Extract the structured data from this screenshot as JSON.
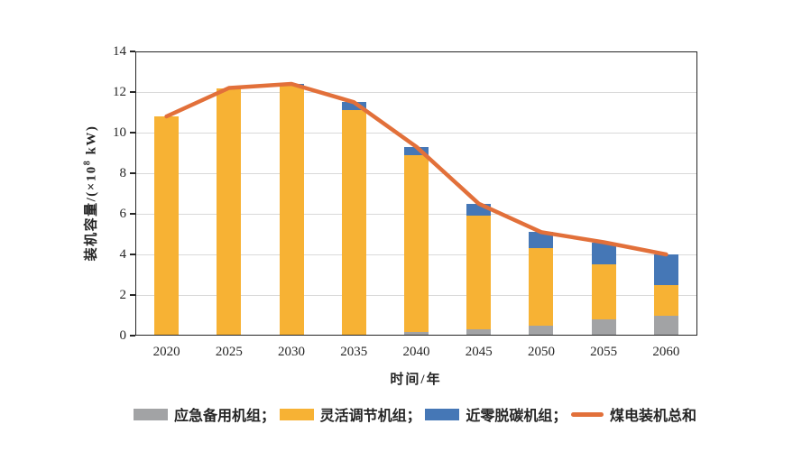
{
  "chart_data": {
    "type": "bar",
    "subtype": "stacked-bars-with-total-line",
    "categories": [
      "2020",
      "2025",
      "2030",
      "2035",
      "2040",
      "2045",
      "2050",
      "2055",
      "2060"
    ],
    "series": [
      {
        "name": "应急备用机组",
        "color": "#A2A3A5",
        "values": [
          0,
          0,
          0,
          0,
          0.2,
          0.3,
          0.5,
          0.8,
          1.0
        ]
      },
      {
        "name": "灵活调节机组",
        "color": "#F7B234",
        "values": [
          10.8,
          12.2,
          12.3,
          11.1,
          8.7,
          5.6,
          3.8,
          2.7,
          1.5
        ]
      },
      {
        "name": "近零脱碳机组",
        "color": "#4577B6",
        "values": [
          0,
          0,
          0.1,
          0.4,
          0.4,
          0.6,
          0.8,
          1.1,
          1.5
        ]
      }
    ],
    "line_series": {
      "name": "煤电装机总和",
      "color": "#E2703A",
      "values": [
        10.8,
        12.2,
        12.4,
        11.5,
        9.3,
        6.5,
        5.1,
        4.6,
        4.0
      ]
    },
    "xlabel": "时间/年",
    "ylabel": "装机容量/(×10⁸ kW)",
    "ylim": [
      0,
      14
    ],
    "yticks": [
      0,
      2,
      4,
      6,
      8,
      10,
      12,
      14
    ],
    "grid": true,
    "legend_position": "bottom"
  },
  "axes": {
    "ylabel_prefix": "装机容量/(×10",
    "ylabel_sup": "8",
    "ylabel_suffix": " kW)",
    "xlabel": "时间/年"
  },
  "legend": {
    "items": [
      {
        "label": "应急备用机组；",
        "swatch": "rect",
        "color": "#A2A3A5"
      },
      {
        "label": "灵活调节机组；",
        "swatch": "rect",
        "color": "#F7B234"
      },
      {
        "label": "近零脱碳机组；",
        "swatch": "rect",
        "color": "#4577B6"
      },
      {
        "label": "煤电装机总和",
        "swatch": "line",
        "color": "#E2703A"
      }
    ]
  },
  "colors": {
    "background": "#FFFFFF",
    "axis_frame": "#262626",
    "gridline": "#D9D9D9",
    "text": "#262626"
  }
}
